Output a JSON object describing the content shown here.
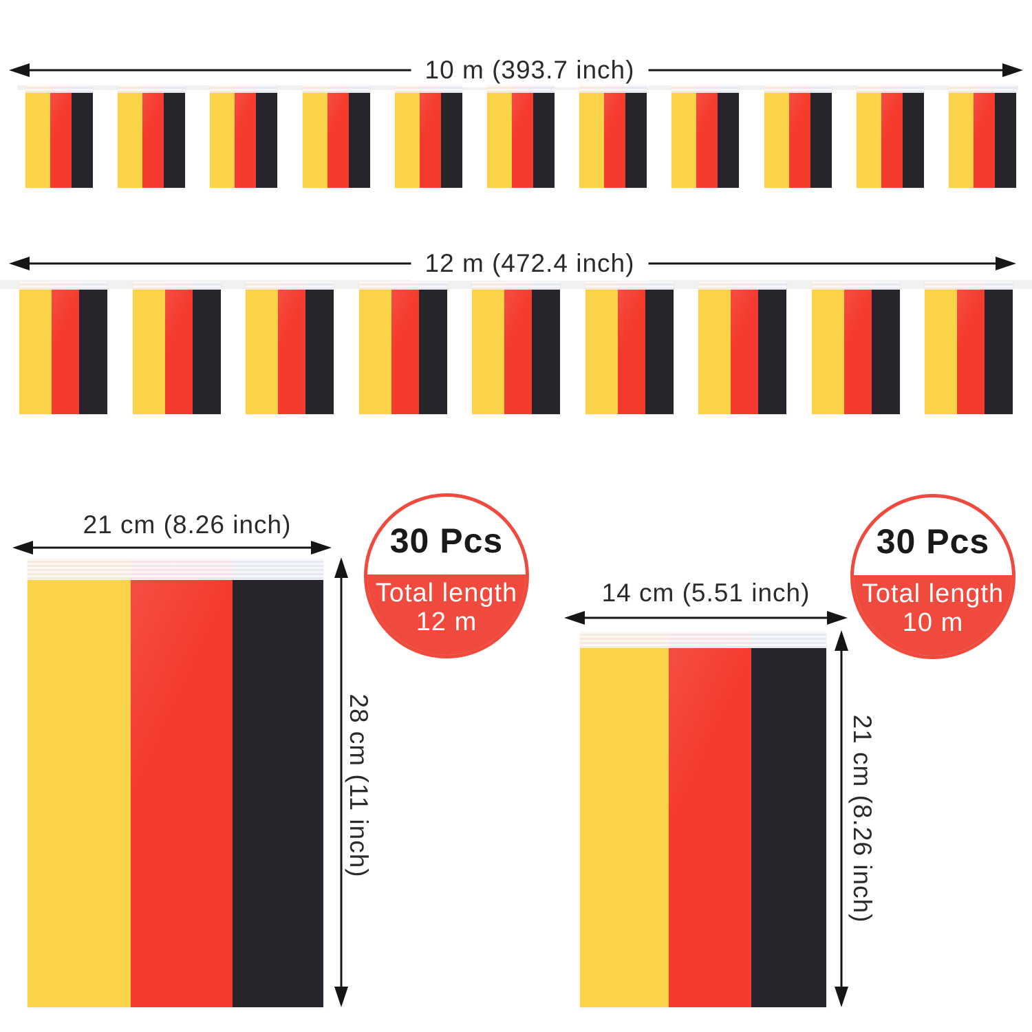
{
  "colors": {
    "flag_yellow": "#FBD348",
    "flag_red": "#F43B2D",
    "flag_black": "#27242B",
    "badge_red": "#EF4A3D",
    "tape_over_yellow": "#FBEEE3",
    "tape_over_red": "#FBE8EE",
    "tape_over_black": "#EBEDF7",
    "string_gray": "#F1F1F1",
    "arrow_black": "#161616",
    "label_text": "#2A2A2A"
  },
  "bunting_rows": [
    {
      "name": "top-string",
      "length_label": "10 m (393.7 inch)",
      "visible_flag_count": 11
    },
    {
      "name": "middle-string",
      "length_label": "12 m (472.4 inch)",
      "visible_flag_count": 9
    }
  ],
  "detail_flags": [
    {
      "name": "large-flag",
      "width_label": "21 cm (8.26 inch)",
      "height_label": "28 cm (11 inch)"
    },
    {
      "name": "medium-flag",
      "width_label": "14 cm (5.51 inch)",
      "height_label": "21 cm (8.26 inch)"
    }
  ],
  "badges": [
    {
      "pieces": "30 Pcs",
      "line1": "Total length",
      "line2": "12 m"
    },
    {
      "pieces": "30 Pcs",
      "line1": "Total length",
      "line2": "10 m"
    }
  ]
}
